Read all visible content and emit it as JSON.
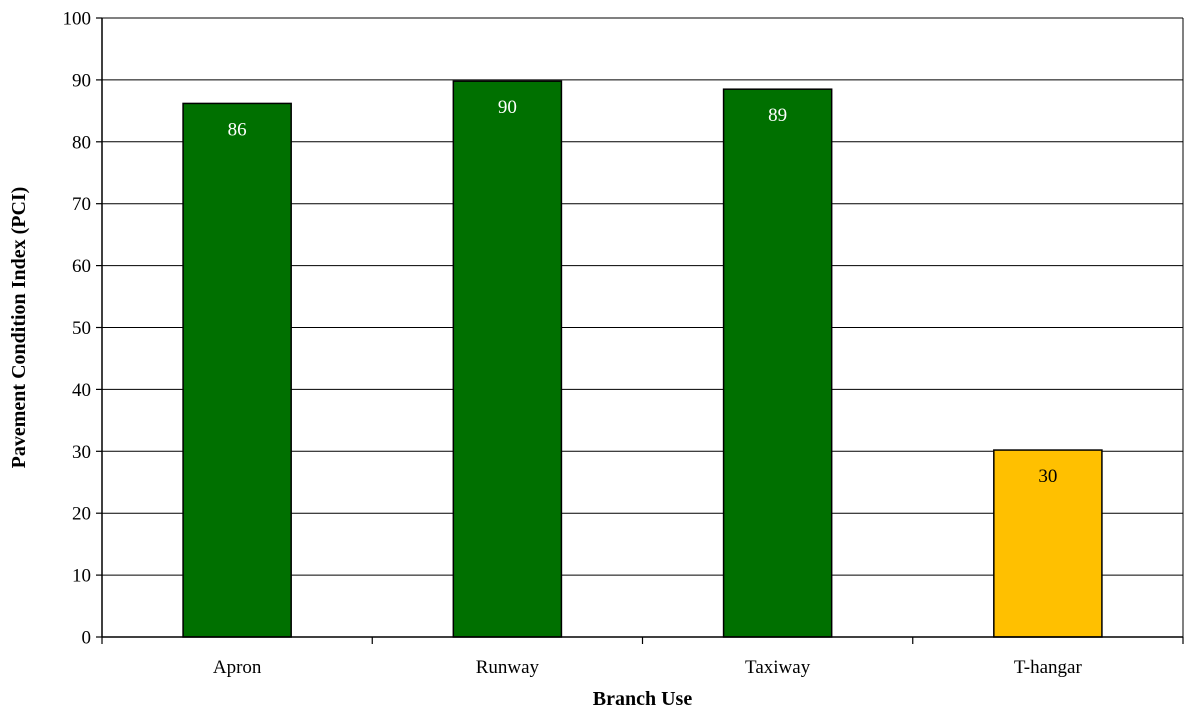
{
  "chart_data": {
    "type": "bar",
    "title": "",
    "xlabel": "Branch Use",
    "ylabel": "Pavement Condition Index (PCI)",
    "ylim": [
      0,
      100
    ],
    "yticks": [
      0,
      10,
      20,
      30,
      40,
      50,
      60,
      70,
      80,
      90,
      100
    ],
    "grid": true,
    "categories": [
      "Apron",
      "Runway",
      "Taxiway",
      "T-hangar"
    ],
    "values": [
      86.2,
      89.8,
      88.5,
      30.2
    ],
    "data_labels": [
      "86",
      "90",
      "89",
      "30"
    ],
    "colors": [
      "#007000",
      "#007000",
      "#007000",
      "#FFC000"
    ],
    "label_colors": [
      "#ffffff",
      "#ffffff",
      "#ffffff",
      "#000000"
    ]
  }
}
